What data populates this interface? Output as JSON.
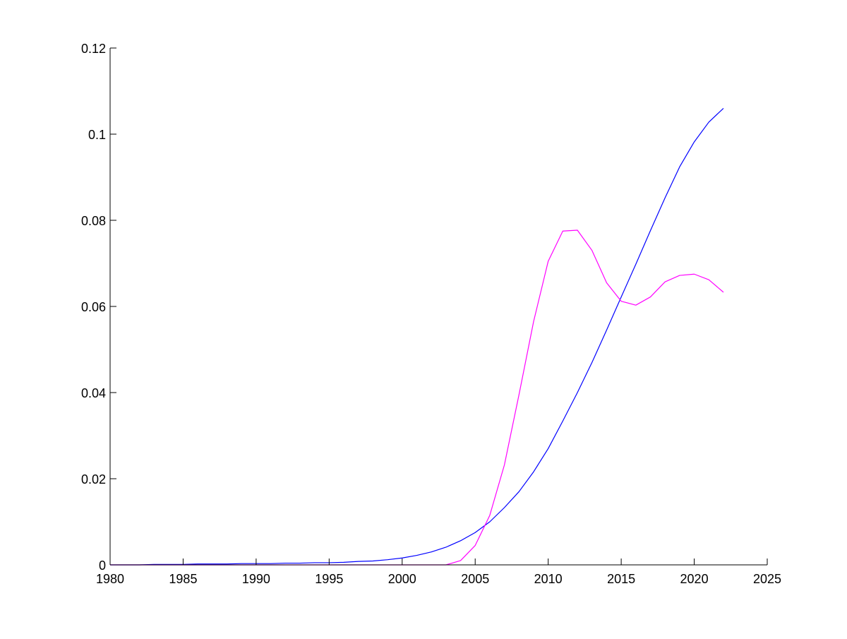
{
  "chart_data": {
    "type": "line",
    "title": "",
    "xlabel": "",
    "ylabel": "",
    "xlim": [
      1980,
      2025
    ],
    "ylim": [
      0,
      0.12
    ],
    "xticks": [
      1980,
      1985,
      1990,
      1995,
      2000,
      2005,
      2010,
      2015,
      2020,
      2025
    ],
    "yticks": [
      0,
      0.02,
      0.04,
      0.06,
      0.08,
      0.1,
      0.12
    ],
    "xtick_labels": [
      "1980",
      "1985",
      "1990",
      "1995",
      "2000",
      "2005",
      "2010",
      "2015",
      "2020",
      "2025"
    ],
    "ytick_labels": [
      "0",
      "0.02",
      "0.04",
      "0.06",
      "0.08",
      "0.1",
      "0.12"
    ],
    "grid": false,
    "legend": "none",
    "series": [
      {
        "color": "#0000ff",
        "x": [
          1980,
          1981,
          1982,
          1983,
          1984,
          1985,
          1986,
          1987,
          1988,
          1989,
          1990,
          1991,
          1992,
          1993,
          1994,
          1995,
          1996,
          1997,
          1998,
          1999,
          2000,
          2001,
          2002,
          2003,
          2004,
          2005,
          2006,
          2007,
          2008,
          2009,
          2010,
          2011,
          2012,
          2013,
          2014,
          2015,
          2016,
          2017,
          2018,
          2019,
          2020,
          2021,
          2022
        ],
        "y": [
          0,
          0,
          0,
          0.0001,
          0.0001,
          0.0001,
          0.0002,
          0.0002,
          0.0002,
          0.0003,
          0.0003,
          0.0003,
          0.0004,
          0.0004,
          0.0005,
          0.0005,
          0.0006,
          0.0008,
          0.0009,
          0.0012,
          0.0016,
          0.0022,
          0.003,
          0.0041,
          0.0056,
          0.0075,
          0.01,
          0.0133,
          0.017,
          0.0216,
          0.027,
          0.0334,
          0.04,
          0.047,
          0.0545,
          0.0622,
          0.0698,
          0.0776,
          0.0852,
          0.0924,
          0.0982,
          0.1028,
          0.106
        ]
      },
      {
        "color": "#ff00ff",
        "x": [
          1980,
          1985,
          1990,
          1995,
          2000,
          2003,
          2004,
          2005,
          2006,
          2007,
          2008,
          2009,
          2010,
          2011,
          2012,
          2013,
          2014,
          2015,
          2016,
          2017,
          2018,
          2019,
          2020,
          2021,
          2022
        ],
        "y": [
          0,
          0,
          0,
          0,
          0,
          0,
          0.001,
          0.0045,
          0.0115,
          0.0232,
          0.0395,
          0.0565,
          0.0705,
          0.0775,
          0.0777,
          0.073,
          0.0655,
          0.0612,
          0.0603,
          0.0622,
          0.0657,
          0.0672,
          0.0675,
          0.0662,
          0.0633
        ]
      }
    ]
  }
}
